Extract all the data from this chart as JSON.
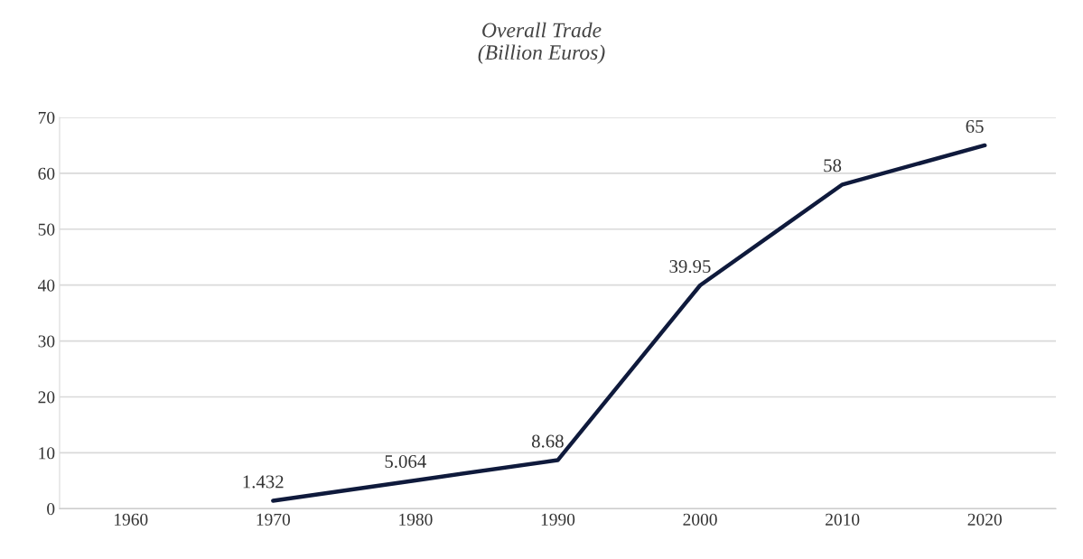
{
  "chart_data": {
    "type": "line",
    "title": "Overall Trade\n(Billion Euros)",
    "categories": [
      "1960",
      "1970",
      "1980",
      "1990",
      "2000",
      "2010",
      "2020"
    ],
    "series": [
      {
        "color": "#0f1a3c",
        "values": [
          null,
          1.432,
          5.064,
          8.68,
          39.95,
          58,
          65
        ]
      }
    ],
    "ylim": [
      0,
      70
    ],
    "yticks": [
      0,
      10,
      20,
      30,
      40,
      50,
      60,
      70
    ],
    "grid": "y",
    "data_labels": true,
    "marker": "none",
    "line_style": "solid"
  }
}
